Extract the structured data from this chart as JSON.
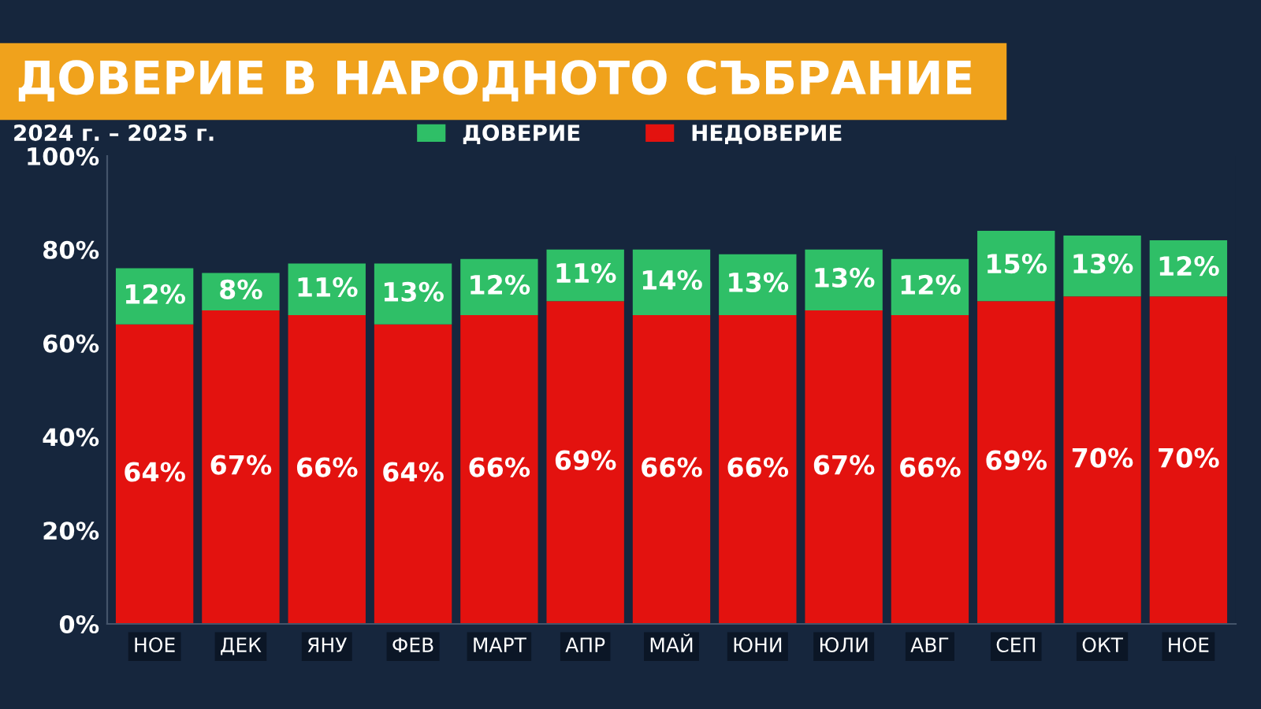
{
  "chart_data": {
    "type": "bar",
    "title": "ДОВЕРИЕ В НАРОДНОТО СЪБРАНИЕ",
    "subtitle": "2024 г. – 2025 г.",
    "categories": [
      "НОЕ",
      "ДЕК",
      "ЯНУ",
      "ФЕВ",
      "МАРТ",
      "АПР",
      "МАЙ",
      "ЮНИ",
      "ЮЛИ",
      "АВГ",
      "СЕП",
      "ОКТ",
      "НОЕ"
    ],
    "stacked": true,
    "series": [
      {
        "name": "НЕДОВЕРИЕ",
        "color": "#e3120f",
        "values": [
          64,
          67,
          66,
          64,
          66,
          69,
          66,
          66,
          67,
          66,
          69,
          70,
          70
        ],
        "value_labels": [
          "64%",
          "67%",
          "66%",
          "64%",
          "66%",
          "69%",
          "66%",
          "66%",
          "67%",
          "66%",
          "69%",
          "70%",
          "70%"
        ]
      },
      {
        "name": "ДОВЕРИЕ",
        "color": "#2fbf67",
        "values": [
          12,
          8,
          11,
          13,
          12,
          11,
          14,
          13,
          13,
          12,
          15,
          13,
          12
        ],
        "value_labels": [
          "12%",
          "8%",
          "11%",
          "13%",
          "12%",
          "11%",
          "14%",
          "13%",
          "13%",
          "12%",
          "15%",
          "13%",
          "12%"
        ]
      }
    ],
    "ylim": [
      0,
      100
    ],
    "yticks": [
      {
        "value": 0,
        "label": "0%"
      },
      {
        "value": 20,
        "label": "20%"
      },
      {
        "value": 40,
        "label": "40%"
      },
      {
        "value": 60,
        "label": "60%"
      },
      {
        "value": 80,
        "label": "80%"
      },
      {
        "value": 100,
        "label": "100%"
      }
    ],
    "grid": false,
    "legend": "top"
  }
}
